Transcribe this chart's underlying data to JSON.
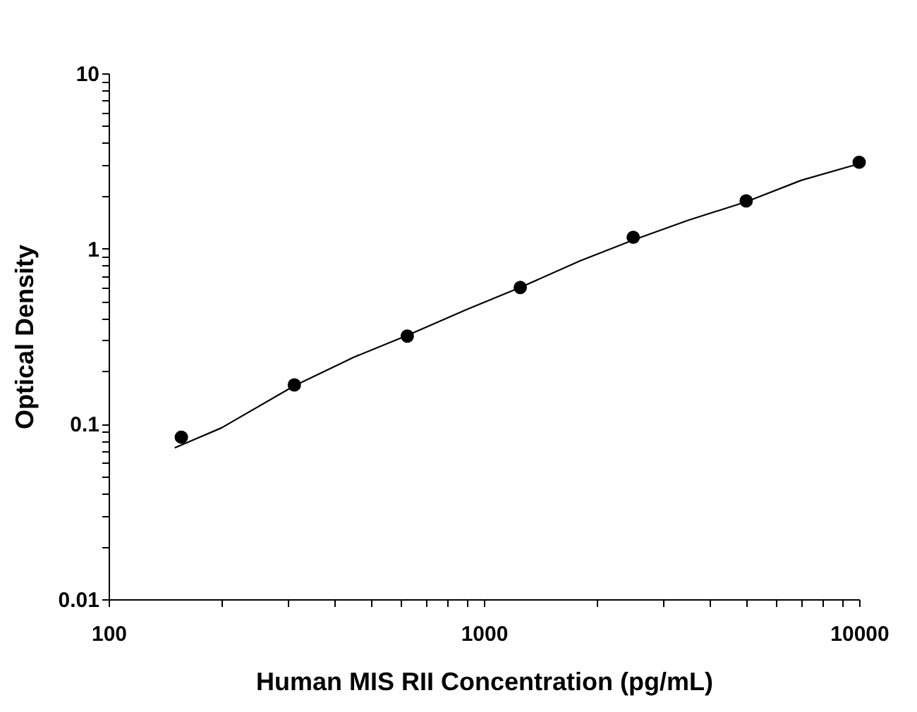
{
  "chart_data": {
    "type": "scatter",
    "xlabel": "Human MIS RII Concentration (pg/mL)",
    "ylabel": "Optical Density",
    "log": "xy",
    "grid": false,
    "xlim": [
      100,
      10000
    ],
    "ylim": [
      0.01,
      10
    ],
    "xticks": [
      100,
      {
        "value": 200,
        "label": null
      },
      {
        "value": 300,
        "label": null
      },
      {
        "value": 400,
        "label": null
      },
      {
        "value": 500,
        "label": null
      },
      {
        "value": 600,
        "label": null
      },
      {
        "value": 700,
        "label": null
      },
      {
        "value": 800,
        "label": null
      },
      {
        "value": 900,
        "label": null
      },
      1000,
      {
        "value": 2000,
        "label": null
      },
      {
        "value": 3000,
        "label": null
      },
      {
        "value": 4000,
        "label": null
      },
      {
        "value": 5000,
        "label": null
      },
      {
        "value": 6000,
        "label": null
      },
      {
        "value": 7000,
        "label": null
      },
      {
        "value": 8000,
        "label": null
      },
      {
        "value": 9000,
        "label": null
      },
      10000
    ],
    "yticks": [
      0.01,
      {
        "value": 0.02,
        "label": null
      },
      {
        "value": 0.03,
        "label": null
      },
      {
        "value": 0.04,
        "label": null
      },
      {
        "value": 0.05,
        "label": null
      },
      {
        "value": 0.06,
        "label": null
      },
      {
        "value": 0.07,
        "label": null
      },
      {
        "value": 0.08,
        "label": null
      },
      {
        "value": 0.09,
        "label": null
      },
      0.1,
      {
        "value": 0.2,
        "label": null
      },
      {
        "value": 0.3,
        "label": null
      },
      {
        "value": 0.4,
        "label": null
      },
      {
        "value": 0.5,
        "label": null
      },
      {
        "value": 0.6,
        "label": null
      },
      {
        "value": 0.7,
        "label": null
      },
      {
        "value": 0.8,
        "label": null
      },
      {
        "value": 0.9,
        "label": null
      },
      1,
      {
        "value": 2,
        "label": null
      },
      {
        "value": 3,
        "label": null
      },
      {
        "value": 4,
        "label": null
      },
      {
        "value": 5,
        "label": null
      },
      {
        "value": 6,
        "label": null
      },
      {
        "value": 7,
        "label": null
      },
      {
        "value": 8,
        "label": null
      },
      {
        "value": 9,
        "label": null
      },
      10
    ],
    "series": [
      {
        "marker": "circle",
        "color": "#000000",
        "x": [
          156.25,
          312.5,
          625,
          1250,
          2500,
          5000,
          10000
        ],
        "values": [
          0.084,
          0.167,
          0.317,
          0.6,
          1.16,
          1.87,
          3.11
        ]
      },
      {
        "type": "line",
        "marker": "none",
        "line_style": "solid",
        "color": "#000000",
        "x": [
          150,
          200,
          312.5,
          450,
          625,
          900,
          1250,
          1800,
          2500,
          3500,
          5000,
          7000,
          10000
        ],
        "values": [
          0.073,
          0.095,
          0.165,
          0.24,
          0.32,
          0.45,
          0.6,
          0.85,
          1.12,
          1.45,
          1.85,
          2.45,
          3.05
        ]
      }
    ]
  }
}
